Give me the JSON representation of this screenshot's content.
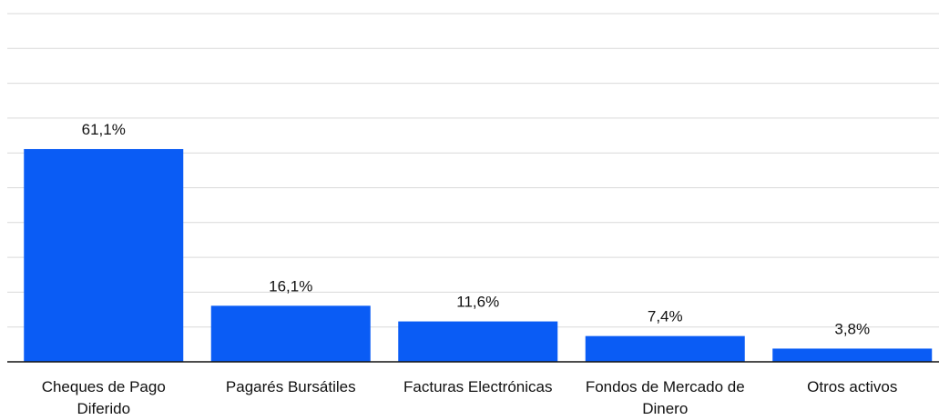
{
  "chart_data": {
    "type": "bar",
    "categories": [
      "Cheques de Pago Diferido",
      "Pagarés Bursátiles",
      "Facturas Electrónicas",
      "Fondos de Mercado de Dinero",
      "Otros activos"
    ],
    "values": [
      61.1,
      16.1,
      11.6,
      7.4,
      3.8
    ],
    "value_labels": [
      "61,1%",
      "16,1%",
      "11,6%",
      "7,4%",
      "3,8%"
    ],
    "color": "#0a5cf5",
    "ylim": [
      0,
      100
    ],
    "yticks": [
      0,
      10,
      20,
      30,
      40,
      50,
      60,
      70,
      80,
      90,
      100
    ],
    "grid": true
  }
}
